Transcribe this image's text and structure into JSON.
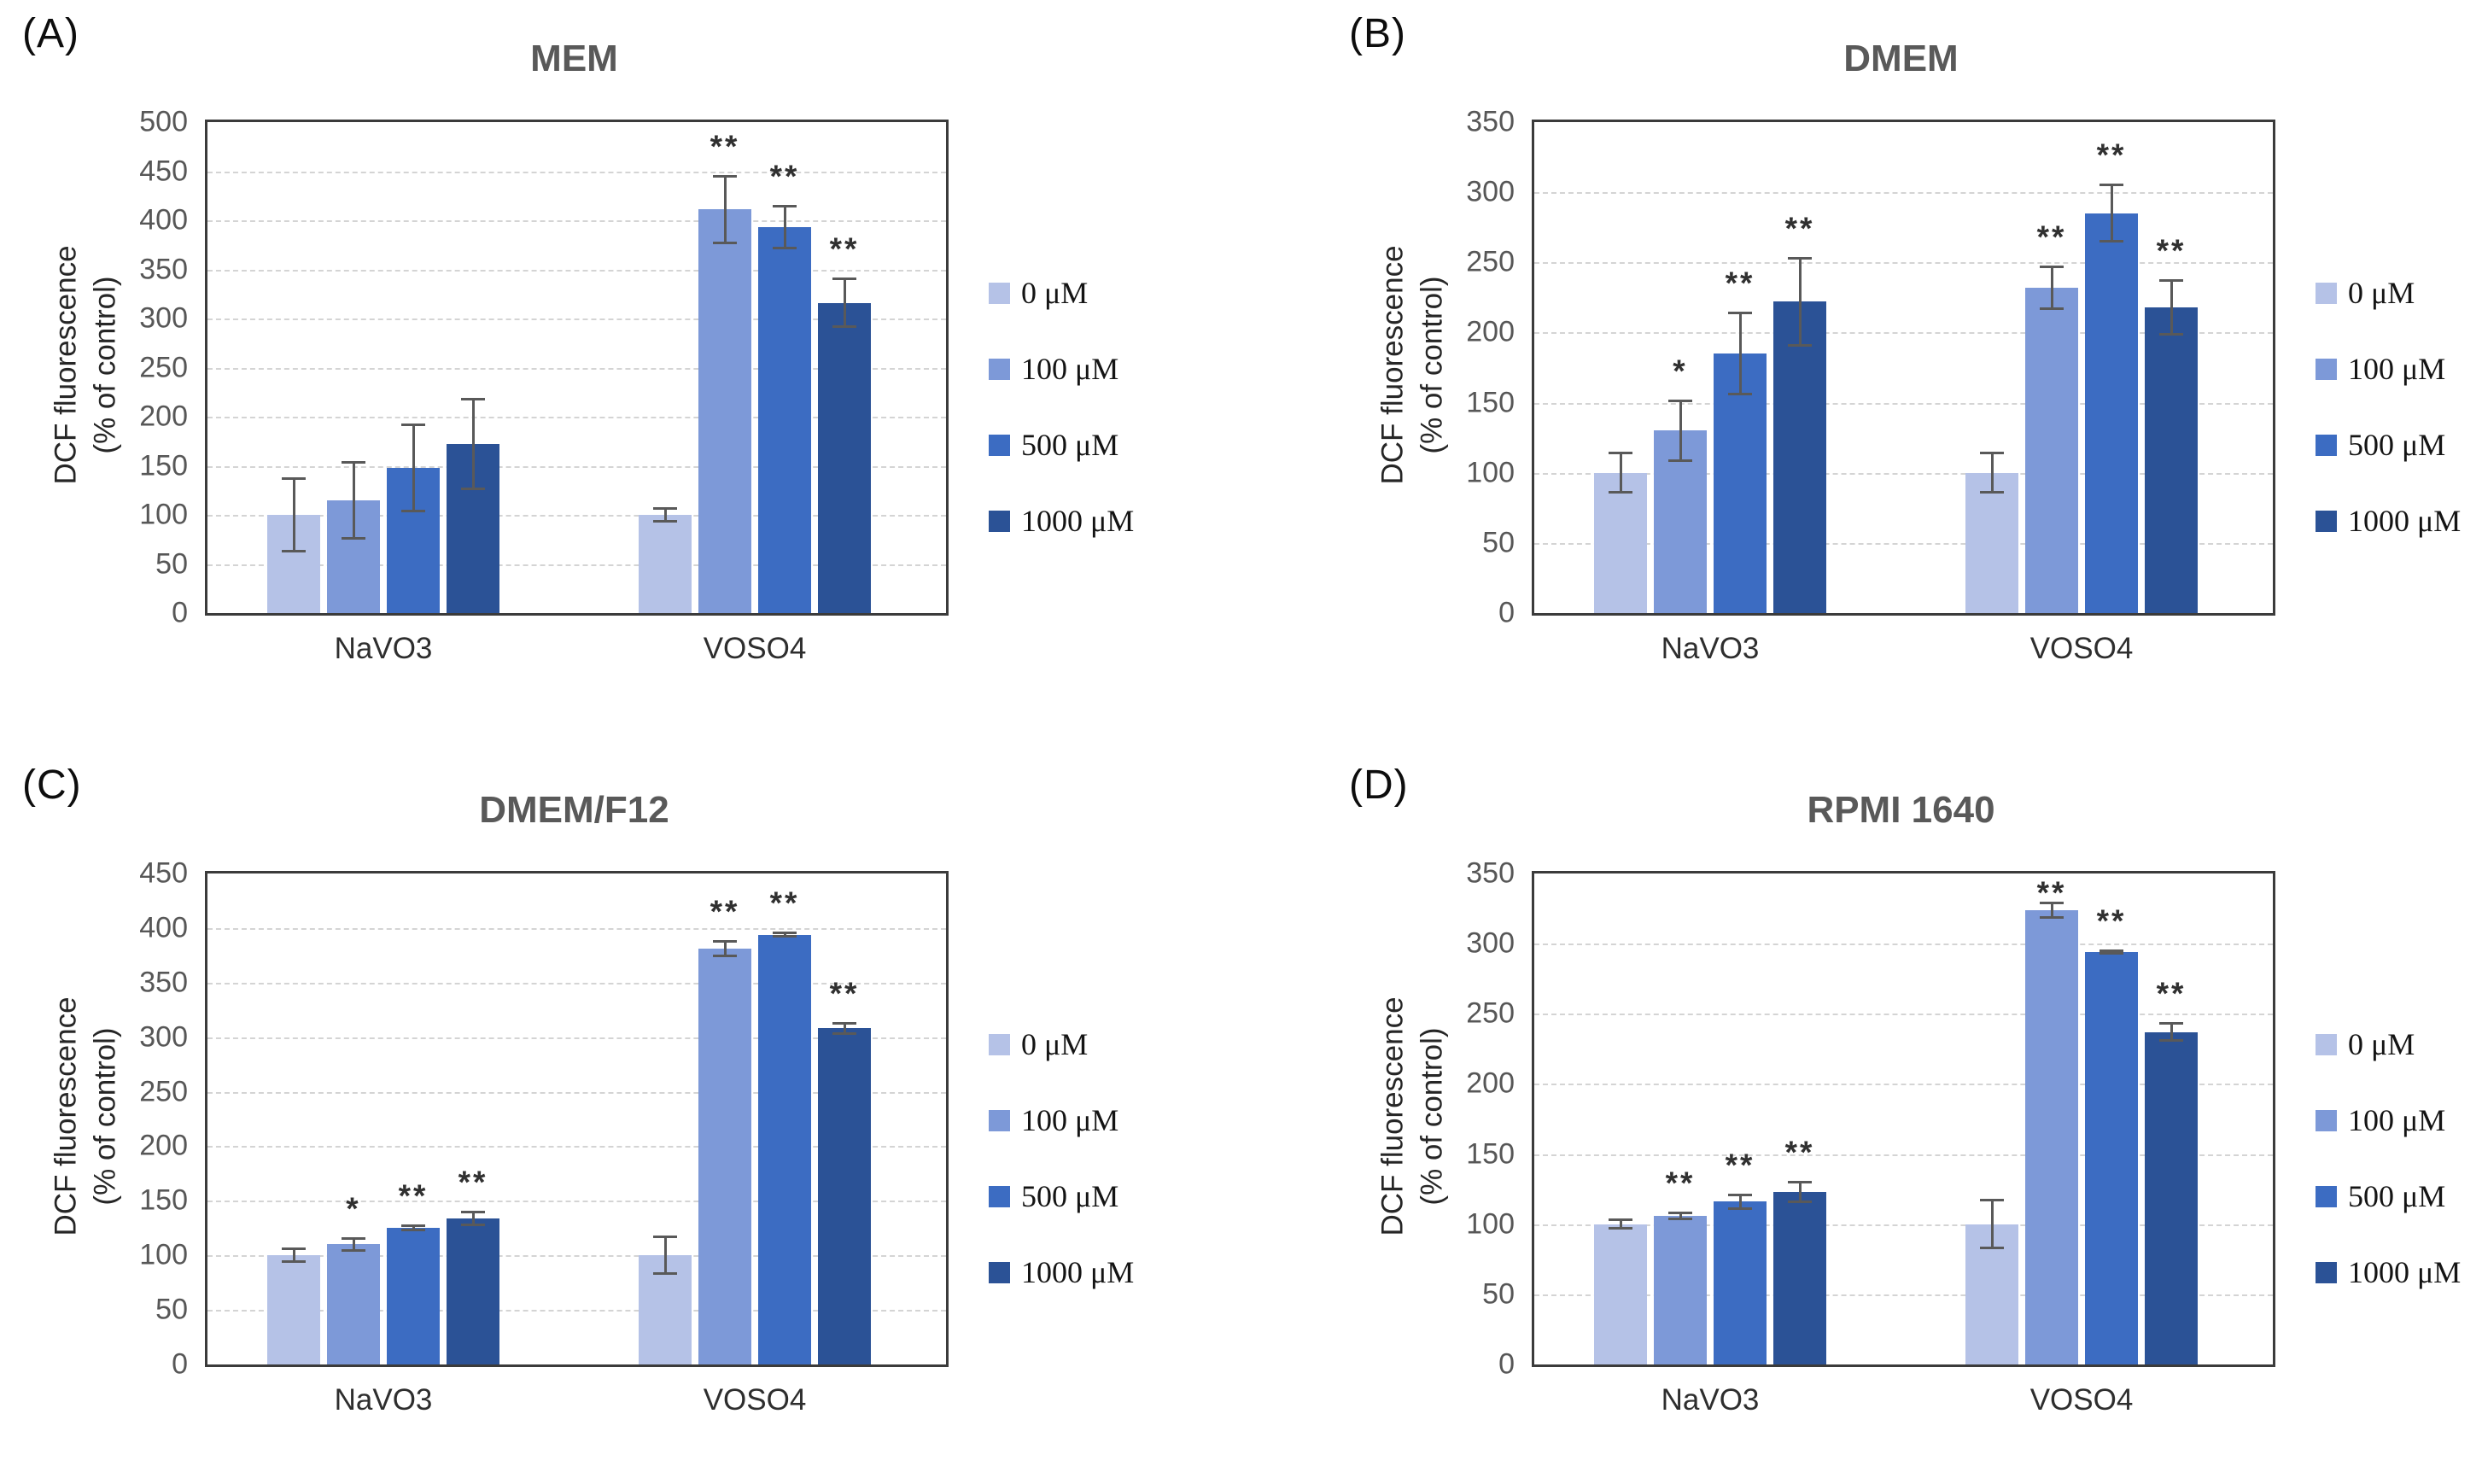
{
  "figure": {
    "ylabel_line1": "DCF fluorescence",
    "ylabel_line2": "(% of control)",
    "categories": [
      "NaVO3",
      "VOSO4"
    ],
    "accent_colors": {
      "series_0uM": "#b5c2e7",
      "series_100uM": "#7d99d8",
      "series_500uM": "#3c6cc2",
      "series_1000uM": "#2b5296",
      "error_bar": "#595959",
      "title_gray": "#595959",
      "grid_gray": "#d4d4d4"
    }
  },
  "chart_data": [
    {
      "type": "bar",
      "panel_letter": "(A)",
      "title": "MEM",
      "ylabel": "DCF fluorescence (% of control)",
      "ylim": [
        0,
        500
      ],
      "yticks": [
        0,
        50,
        100,
        150,
        200,
        250,
        300,
        350,
        400,
        450,
        500
      ],
      "grid": true,
      "legend_position": "right",
      "categories": [
        "NaVO3",
        "VOSO4"
      ],
      "series": [
        {
          "name": "0 μM",
          "color": "#b5c2e7",
          "values": [
            100,
            100
          ],
          "errors": [
            38,
            8
          ],
          "sig": [
            "",
            ""
          ]
        },
        {
          "name": "100 μM",
          "color": "#7d99d8",
          "values": [
            115,
            411
          ],
          "errors": [
            40,
            35
          ],
          "sig": [
            "",
            "**"
          ]
        },
        {
          "name": "500 μM",
          "color": "#3c6cc2",
          "values": [
            148,
            393
          ],
          "errors": [
            45,
            23
          ],
          "sig": [
            "",
            "**"
          ]
        },
        {
          "name": "1000 μM",
          "color": "#2b5296",
          "values": [
            172,
            316
          ],
          "errors": [
            47,
            26
          ],
          "sig": [
            "",
            "**"
          ]
        }
      ]
    },
    {
      "type": "bar",
      "panel_letter": "(B)",
      "title": "DMEM",
      "ylabel": "DCF fluorescence (% of control)",
      "ylim": [
        0,
        350
      ],
      "yticks": [
        0,
        50,
        100,
        150,
        200,
        250,
        300,
        350
      ],
      "grid": true,
      "legend_position": "right",
      "categories": [
        "NaVO3",
        "VOSO4"
      ],
      "series": [
        {
          "name": "0 μM",
          "color": "#b5c2e7",
          "values": [
            100,
            100
          ],
          "errors": [
            15,
            15
          ],
          "sig": [
            "",
            ""
          ]
        },
        {
          "name": "100 μM",
          "color": "#7d99d8",
          "values": [
            130,
            232
          ],
          "errors": [
            22,
            16
          ],
          "sig": [
            "*",
            "**"
          ]
        },
        {
          "name": "500 μM",
          "color": "#3c6cc2",
          "values": [
            185,
            285
          ],
          "errors": [
            30,
            21
          ],
          "sig": [
            "**",
            "**"
          ]
        },
        {
          "name": "1000 μM",
          "color": "#2b5296",
          "values": [
            222,
            218
          ],
          "errors": [
            32,
            20
          ],
          "sig": [
            "**",
            "**"
          ]
        }
      ]
    },
    {
      "type": "bar",
      "panel_letter": "(C)",
      "title": "DMEM/F12",
      "ylabel": "DCF fluorescence (% of control)",
      "ylim": [
        0,
        450
      ],
      "yticks": [
        0,
        50,
        100,
        150,
        200,
        250,
        300,
        350,
        400,
        450
      ],
      "grid": true,
      "legend_position": "right",
      "categories": [
        "NaVO3",
        "VOSO4"
      ],
      "series": [
        {
          "name": "0 μM",
          "color": "#b5c2e7",
          "values": [
            100,
            100
          ],
          "errors": [
            7,
            18
          ],
          "sig": [
            "",
            ""
          ]
        },
        {
          "name": "100 μM",
          "color": "#7d99d8",
          "values": [
            110,
            381
          ],
          "errors": [
            7,
            8
          ],
          "sig": [
            "*",
            "**"
          ]
        },
        {
          "name": "500 μM",
          "color": "#3c6cc2",
          "values": [
            125,
            394
          ],
          "errors": [
            3,
            3
          ],
          "sig": [
            "**",
            "**"
          ]
        },
        {
          "name": "1000 μM",
          "color": "#2b5296",
          "values": [
            134,
            308
          ],
          "errors": [
            7,
            6
          ],
          "sig": [
            "**",
            "**"
          ]
        }
      ]
    },
    {
      "type": "bar",
      "panel_letter": "(D)",
      "title": "RPMI 1640",
      "ylabel": "DCF fluorescence (% of control)",
      "ylim": [
        0,
        350
      ],
      "yticks": [
        0,
        50,
        100,
        150,
        200,
        250,
        300,
        350
      ],
      "grid": true,
      "legend_position": "right",
      "categories": [
        "NaVO3",
        "VOSO4"
      ],
      "series": [
        {
          "name": "0 μM",
          "color": "#b5c2e7",
          "values": [
            100,
            100
          ],
          "errors": [
            4,
            18
          ],
          "sig": [
            "",
            ""
          ]
        },
        {
          "name": "100 μM",
          "color": "#7d99d8",
          "values": [
            106,
            324
          ],
          "errors": [
            3,
            6
          ],
          "sig": [
            "**",
            "**"
          ]
        },
        {
          "name": "500 μM",
          "color": "#3c6cc2",
          "values": [
            116,
            294
          ],
          "errors": [
            6,
            2
          ],
          "sig": [
            "**",
            "**"
          ]
        },
        {
          "name": "1000 μM",
          "color": "#2b5296",
          "values": [
            123,
            237
          ],
          "errors": [
            8,
            7
          ],
          "sig": [
            "**",
            "**"
          ]
        }
      ]
    }
  ]
}
